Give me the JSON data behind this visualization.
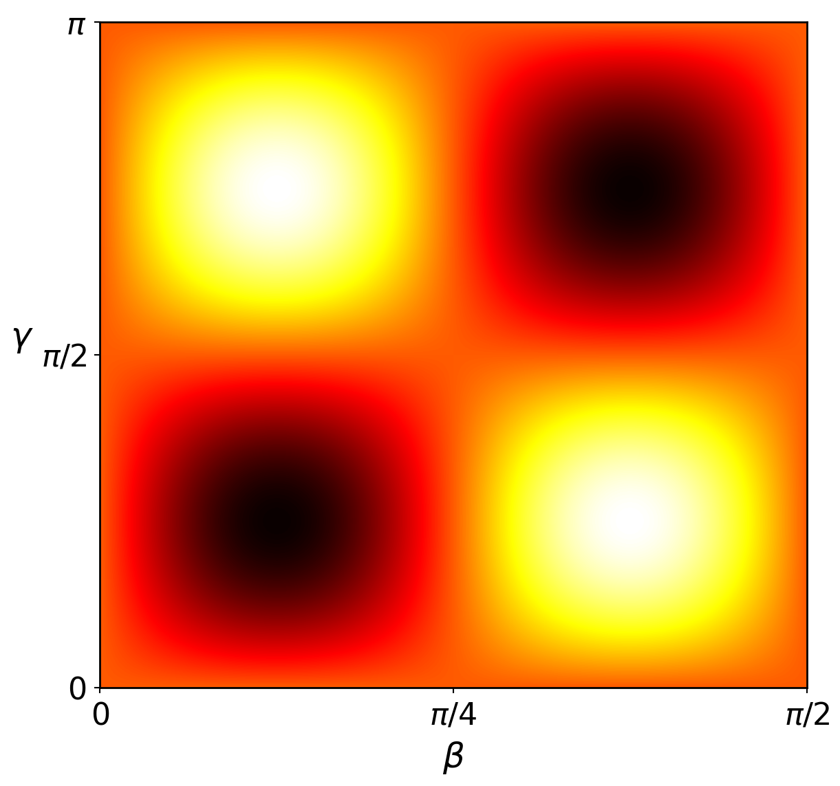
{
  "beta_range": [
    0,
    1.5707963267948966
  ],
  "gamma_range": [
    0,
    3.141592653589793
  ],
  "n_points": 500,
  "colormap": "hot",
  "xlabel": "$\\beta$",
  "ylabel": "$\\gamma$",
  "xticks": [
    0,
    0.7853981633974483,
    1.5707963267948966
  ],
  "xticklabels": [
    "$0$",
    "$\\pi/4$",
    "$\\pi/2$"
  ],
  "yticks": [
    0,
    1.5707963267948966,
    3.141592653589793
  ],
  "yticklabels": [
    "$0$",
    "$\\pi/2$",
    "$\\pi$"
  ],
  "xlabel_fontsize": 36,
  "ylabel_fontsize": 36,
  "tick_fontsize": 32,
  "figsize": [
    12.21,
    11.43
  ],
  "dpi": 100,
  "background_color": "#ffffff",
  "spine_linewidth": 2.0
}
